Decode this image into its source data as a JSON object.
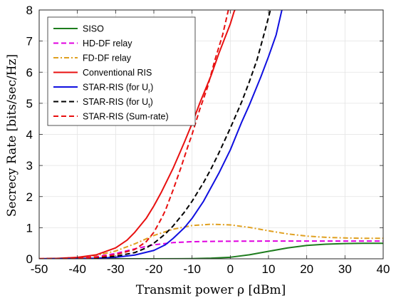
{
  "chart_data": {
    "type": "line",
    "title": "",
    "xlabel": "Transmit power ρ [dBm]",
    "ylabel": "Secrecy Rate [bits/sec/Hz]",
    "xlim": [
      -50,
      40
    ],
    "ylim": [
      0,
      8
    ],
    "xticks": [
      "-50",
      "-40",
      "-30",
      "-20",
      "-10",
      "0",
      "10",
      "20",
      "30",
      "40"
    ],
    "yticks": [
      "0",
      "1",
      "2",
      "3",
      "4",
      "5",
      "6",
      "7",
      "8"
    ],
    "grid": true,
    "legend_position": "top-left",
    "series": [
      {
        "name": "SISO",
        "color": "#1e7d1e",
        "dash": "solid",
        "points": [
          [
            -50,
            0
          ],
          [
            -20,
            0
          ],
          [
            -10,
            0.005
          ],
          [
            -5,
            0.02
          ],
          [
            0,
            0.05
          ],
          [
            5,
            0.13
          ],
          [
            10,
            0.24
          ],
          [
            15,
            0.35
          ],
          [
            20,
            0.43
          ],
          [
            25,
            0.47
          ],
          [
            30,
            0.49
          ],
          [
            35,
            0.5
          ],
          [
            40,
            0.5
          ]
        ]
      },
      {
        "name": "HD-DF relay",
        "color": "#e000e0",
        "dash": "dashed",
        "points": [
          [
            -50,
            0.003
          ],
          [
            -45,
            0.01
          ],
          [
            -40,
            0.025
          ],
          [
            -35,
            0.07
          ],
          [
            -30,
            0.17
          ],
          [
            -25,
            0.32
          ],
          [
            -20,
            0.45
          ],
          [
            -15,
            0.52
          ],
          [
            -10,
            0.55
          ],
          [
            -5,
            0.56
          ],
          [
            0,
            0.565
          ],
          [
            10,
            0.57
          ],
          [
            20,
            0.57
          ],
          [
            30,
            0.57
          ],
          [
            40,
            0.57
          ]
        ]
      },
      {
        "name": "FD-DF relay",
        "color": "#e0a020",
        "dash": "dashdot",
        "points": [
          [
            -50,
            0.004
          ],
          [
            -45,
            0.015
          ],
          [
            -40,
            0.04
          ],
          [
            -35,
            0.11
          ],
          [
            -30,
            0.25
          ],
          [
            -25,
            0.48
          ],
          [
            -20,
            0.75
          ],
          [
            -15,
            0.95
          ],
          [
            -10,
            1.07
          ],
          [
            -5,
            1.11
          ],
          [
            0,
            1.09
          ],
          [
            5,
            1.01
          ],
          [
            10,
            0.9
          ],
          [
            15,
            0.8
          ],
          [
            20,
            0.73
          ],
          [
            25,
            0.69
          ],
          [
            30,
            0.67
          ],
          [
            35,
            0.66
          ],
          [
            40,
            0.66
          ]
        ]
      },
      {
        "name": "Conventional RIS",
        "color": "#e81010",
        "dash": "solid",
        "points": [
          [
            -50,
            0.004
          ],
          [
            -45,
            0.015
          ],
          [
            -40,
            0.045
          ],
          [
            -35,
            0.13
          ],
          [
            -30,
            0.35
          ],
          [
            -27,
            0.6
          ],
          [
            -25,
            0.85
          ],
          [
            -22,
            1.3
          ],
          [
            -20,
            1.7
          ],
          [
            -18,
            2.15
          ],
          [
            -15,
            2.9
          ],
          [
            -12,
            3.75
          ],
          [
            -10,
            4.35
          ],
          [
            -8,
            5
          ],
          [
            -5,
            5.9
          ],
          [
            -3,
            6.6
          ],
          [
            0,
            7.55
          ],
          [
            1,
            7.95
          ],
          [
            1.2,
            8
          ]
        ]
      },
      {
        "name": "STAR-RIS (for U_r)",
        "color": "#1010e0",
        "dash": "solid",
        "points": [
          [
            -50,
            0
          ],
          [
            -40,
            0.005
          ],
          [
            -35,
            0.02
          ],
          [
            -30,
            0.05
          ],
          [
            -25,
            0.12
          ],
          [
            -20,
            0.27
          ],
          [
            -17,
            0.45
          ],
          [
            -15,
            0.65
          ],
          [
            -12,
            1
          ],
          [
            -10,
            1.3
          ],
          [
            -7,
            1.85
          ],
          [
            -5,
            2.3
          ],
          [
            -3,
            2.75
          ],
          [
            0,
            3.5
          ],
          [
            3,
            4.4
          ],
          [
            5,
            4.95
          ],
          [
            8,
            5.85
          ],
          [
            10,
            6.5
          ],
          [
            12,
            7.2
          ],
          [
            13.5,
            8
          ]
        ]
      },
      {
        "name": "STAR-RIS (for U_t)",
        "color": "#000000",
        "dash": "dashed",
        "points": [
          [
            -50,
            0
          ],
          [
            -40,
            0.008
          ],
          [
            -35,
            0.03
          ],
          [
            -30,
            0.08
          ],
          [
            -25,
            0.2
          ],
          [
            -22,
            0.35
          ],
          [
            -20,
            0.5
          ],
          [
            -17,
            0.8
          ],
          [
            -15,
            1.05
          ],
          [
            -12,
            1.5
          ],
          [
            -10,
            1.85
          ],
          [
            -7,
            2.45
          ],
          [
            -5,
            2.9
          ],
          [
            -3,
            3.4
          ],
          [
            0,
            4.2
          ],
          [
            3,
            5.05
          ],
          [
            5,
            5.7
          ],
          [
            7,
            6.4
          ],
          [
            9,
            7.3
          ],
          [
            10.5,
            8
          ]
        ]
      },
      {
        "name": "STAR-RIS (Sum-rate)",
        "color": "#e81010",
        "dash": "dashed",
        "points": [
          [
            -50,
            0
          ],
          [
            -40,
            0.01
          ],
          [
            -35,
            0.05
          ],
          [
            -30,
            0.13
          ],
          [
            -25,
            0.3
          ],
          [
            -22,
            0.55
          ],
          [
            -20,
            0.85
          ],
          [
            -18,
            1.3
          ],
          [
            -17,
            1.55
          ],
          [
            -15,
            2.2
          ],
          [
            -13,
            2.9
          ],
          [
            -11,
            3.65
          ],
          [
            -10,
            4.0
          ],
          [
            -8,
            4.8
          ],
          [
            -6,
            5.5
          ],
          [
            -4,
            6.4
          ],
          [
            -2,
            7.2
          ],
          [
            -0.5,
            8
          ]
        ]
      }
    ]
  },
  "legend": {
    "entries": [
      {
        "label": "SISO",
        "sub": ""
      },
      {
        "label": "HD-DF relay",
        "sub": ""
      },
      {
        "label": "FD-DF relay",
        "sub": ""
      },
      {
        "label": "Conventional RIS",
        "sub": ""
      },
      {
        "label": "STAR-RIS (for U",
        "sub": "r",
        "tail": ")"
      },
      {
        "label": "STAR-RIS (for U",
        "sub": "t",
        "tail": ")"
      },
      {
        "label": "STAR-RIS (Sum-rate)",
        "sub": ""
      }
    ]
  }
}
